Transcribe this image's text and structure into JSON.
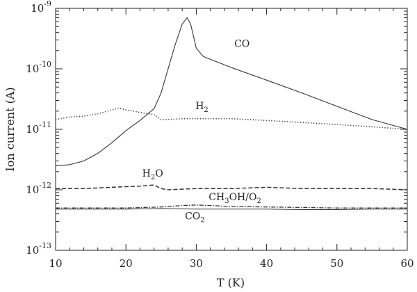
{
  "chart_data": {
    "type": "line",
    "xlabel": "T (K)",
    "ylabel": "Ion current (A)",
    "xlim": [
      10,
      60
    ],
    "ylim": [
      1e-13,
      1e-09
    ],
    "yscale": "log",
    "x_ticks": [
      10,
      20,
      30,
      40,
      50,
      60
    ],
    "x_tick_labels": [
      "10",
      "20",
      "30",
      "40",
      "50",
      "60"
    ],
    "y_ticks": [
      1e-13,
      1e-12,
      1e-11,
      1e-10,
      1e-09
    ],
    "y_tick_labels": [
      {
        "base": "10",
        "exp": "-13"
      },
      {
        "base": "10",
        "exp": "-12"
      },
      {
        "base": "10",
        "exp": "-11"
      },
      {
        "base": "10",
        "exp": "-10"
      },
      {
        "base": "10",
        "exp": "-9"
      }
    ],
    "grid": false,
    "series": [
      {
        "name": "CO",
        "label_parts": [
          {
            "t": "CO"
          }
        ],
        "style": "solid",
        "x": [
          10,
          12,
          14,
          16,
          18,
          20,
          22,
          24,
          25,
          26,
          27,
          28,
          28.7,
          29.2,
          30,
          31,
          35,
          40,
          45,
          50,
          55,
          60
        ],
        "y": [
          2.5e-12,
          2.6e-12,
          3e-12,
          4e-12,
          6e-12,
          9.5e-12,
          1.4e-11,
          2.2e-11,
          4e-11,
          1e-10,
          2.5e-10,
          5.5e-10,
          7e-10,
          5.5e-10,
          2.2e-10,
          1.6e-10,
          1.05e-10,
          6.5e-11,
          4e-11,
          2.4e-11,
          1.45e-11,
          1e-11
        ]
      },
      {
        "name": "H2",
        "label_parts": [
          {
            "t": "H"
          },
          {
            "t": "2",
            "sub": true
          }
        ],
        "style": "dotted",
        "x": [
          10,
          12,
          14,
          16,
          18,
          19,
          20,
          22,
          24,
          25,
          26,
          28,
          30,
          35,
          40,
          45,
          50,
          55,
          60
        ],
        "y": [
          1.45e-11,
          1.6e-11,
          1.65e-11,
          1.8e-11,
          2.1e-11,
          2.25e-11,
          2.1e-11,
          1.9e-11,
          1.75e-11,
          1.45e-11,
          1.45e-11,
          1.5e-11,
          1.5e-11,
          1.5e-11,
          1.4e-11,
          1.3e-11,
          1.2e-11,
          1.1e-11,
          1e-11
        ]
      },
      {
        "name": "H2O",
        "label_parts": [
          {
            "t": "H"
          },
          {
            "t": "2",
            "sub": true
          },
          {
            "t": "O"
          }
        ],
        "style": "dashed",
        "x": [
          10,
          14,
          18,
          22,
          24,
          25,
          26,
          30,
          35,
          40,
          45,
          50,
          55,
          60
        ],
        "y": [
          1.05e-12,
          1.05e-12,
          1.1e-12,
          1.15e-12,
          1.2e-12,
          1.05e-12,
          1e-12,
          1.05e-12,
          1.05e-12,
          1.1e-12,
          1.05e-12,
          1.05e-12,
          1.05e-12,
          1e-12
        ]
      },
      {
        "name": "CH3OH/O2",
        "label_parts": [
          {
            "t": "CH"
          },
          {
            "t": "3",
            "sub": true
          },
          {
            "t": "OH/O"
          },
          {
            "t": "2",
            "sub": true
          }
        ],
        "style": "dashdot",
        "x": [
          10,
          15,
          20,
          25,
          28,
          30,
          32,
          35,
          40,
          45,
          50,
          55,
          60
        ],
        "y": [
          5e-13,
          5e-13,
          5e-13,
          5.2e-13,
          5.5e-13,
          5.6e-13,
          5.5e-13,
          5.3e-13,
          5.2e-13,
          5.1e-13,
          5e-13,
          5e-13,
          5e-13
        ]
      },
      {
        "name": "CO2",
        "label_parts": [
          {
            "t": "CO"
          },
          {
            "t": "2",
            "sub": true
          }
        ],
        "style": "solid-thin",
        "x": [
          10,
          15,
          20,
          25,
          30,
          35,
          40,
          45,
          50,
          55,
          60
        ],
        "y": [
          4.8e-13,
          4.8e-13,
          4.8e-13,
          4.9e-13,
          4.8e-13,
          4.8e-13,
          4.8e-13,
          4.7e-13,
          4.7e-13,
          4.8e-13,
          4.8e-13
        ]
      }
    ]
  }
}
